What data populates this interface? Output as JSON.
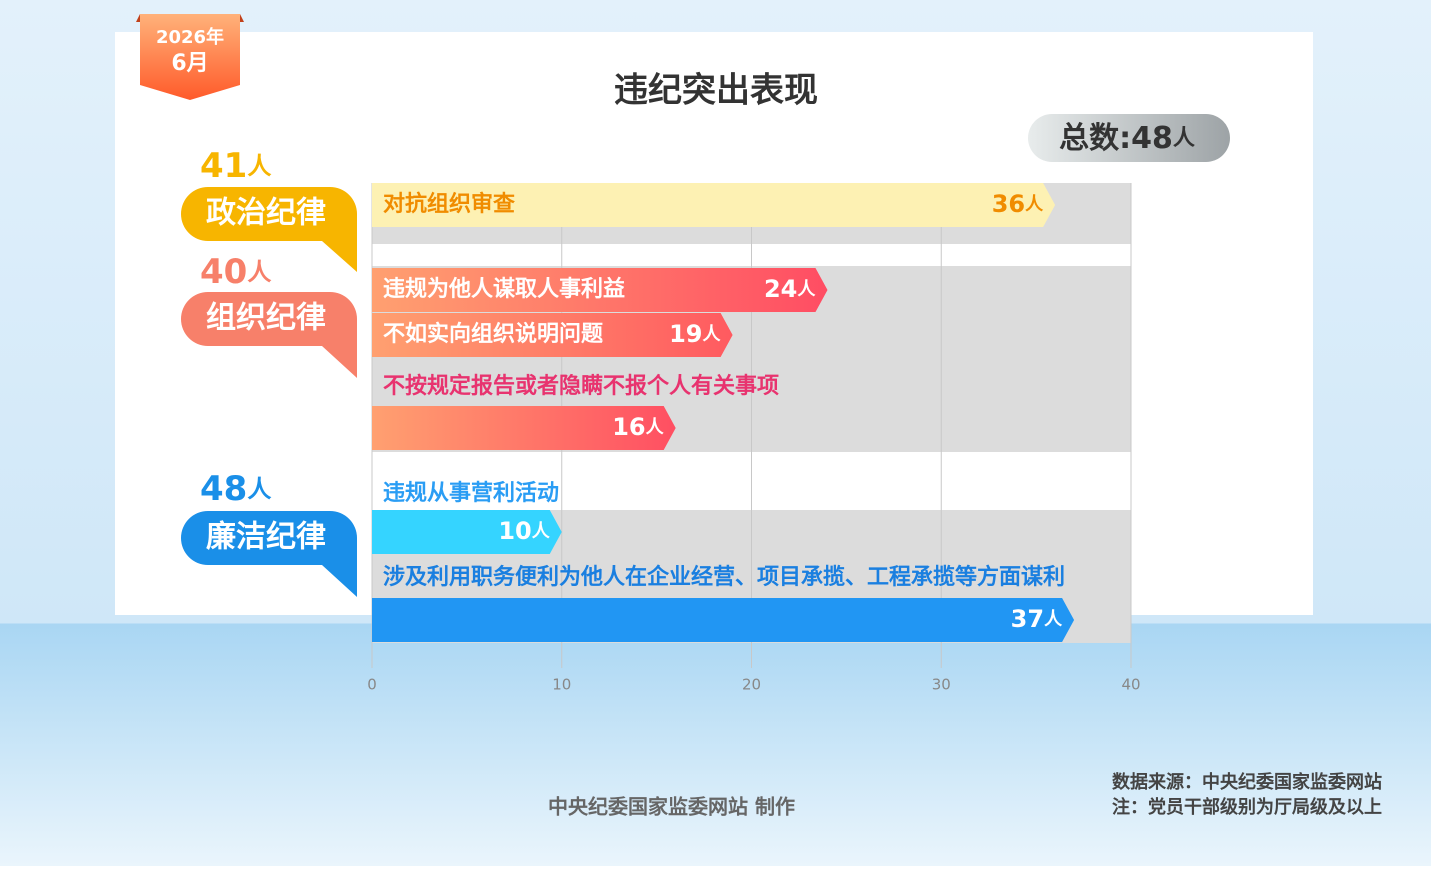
{
  "chart_data": {
    "type": "bar",
    "title": "违纪突出表现",
    "date": {
      "year": "2026年",
      "month": "6月"
    },
    "total_label": "总数:",
    "total": 48,
    "unit": "人",
    "groups": [
      {
        "name": "政治纪律",
        "total": 41,
        "color": "#f7b500",
        "bars": [
          {
            "label": "对抗组织审查",
            "value": 36,
            "color": "#fdf1b3"
          }
        ]
      },
      {
        "name": "组织纪律",
        "total": 40,
        "color": "#f7806a",
        "bars": [
          {
            "label": "违规为他人谋取人事利益",
            "value": 24,
            "color": "#ff4d63"
          },
          {
            "label": "不如实向组织说明问题",
            "value": 19,
            "color": "#ff5a60"
          },
          {
            "label": "不按规定报告或者隐瞒不报个人有关事项",
            "value": 16,
            "color": "#ff4f62"
          }
        ]
      },
      {
        "name": "廉洁纪律",
        "total": 48,
        "color": "#1a8fe8",
        "bars": [
          {
            "label": "违规从事营利活动",
            "value": 10,
            "color": "#35d4ff"
          },
          {
            "label": "涉及利用职务便利为他人在企业经营、项目承揽、工程承揽等方面谋利",
            "value": 37,
            "color": "#2196f3"
          }
        ]
      }
    ],
    "xlim": [
      0,
      40
    ],
    "xticks": [
      0,
      10,
      20,
      30,
      40
    ],
    "source": "数据来源：中央纪委国家监委网站",
    "note": "注：党员干部级别为厅局级及以上",
    "credit": "中央纪委国家监委网站 制作"
  }
}
